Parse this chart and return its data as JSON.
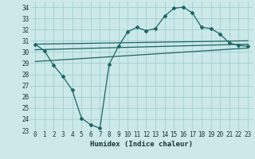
{
  "title": "",
  "xlabel": "Humidex (Indice chaleur)",
  "ylabel": "",
  "background_color": "#cce8e8",
  "grid_color": "#99cccc",
  "line_color": "#1a6666",
  "xlim": [
    -0.5,
    23.5
  ],
  "ylim": [
    23,
    34.5
  ],
  "yticks": [
    23,
    24,
    25,
    26,
    27,
    28,
    29,
    30,
    31,
    32,
    33,
    34
  ],
  "xticks": [
    0,
    1,
    2,
    3,
    4,
    5,
    6,
    7,
    8,
    9,
    10,
    11,
    12,
    13,
    14,
    15,
    16,
    17,
    18,
    19,
    20,
    21,
    22,
    23
  ],
  "main_x": [
    0,
    1,
    2,
    3,
    4,
    5,
    6,
    7,
    8,
    9,
    10,
    11,
    12,
    13,
    14,
    15,
    16,
    17,
    18,
    19,
    20,
    21,
    22,
    23
  ],
  "main_y": [
    30.7,
    30.1,
    28.8,
    27.8,
    26.6,
    24.1,
    23.5,
    23.2,
    28.9,
    30.5,
    31.8,
    32.2,
    31.9,
    32.1,
    33.2,
    33.9,
    34.0,
    33.5,
    32.2,
    32.1,
    31.6,
    30.8,
    30.6,
    30.5
  ],
  "line1_x": [
    0,
    23
  ],
  "line1_y": [
    30.7,
    31.0
  ],
  "line2_x": [
    0,
    23
  ],
  "line2_y": [
    30.2,
    30.7
  ],
  "line3_x": [
    0,
    23
  ],
  "line3_y": [
    29.15,
    30.35
  ]
}
